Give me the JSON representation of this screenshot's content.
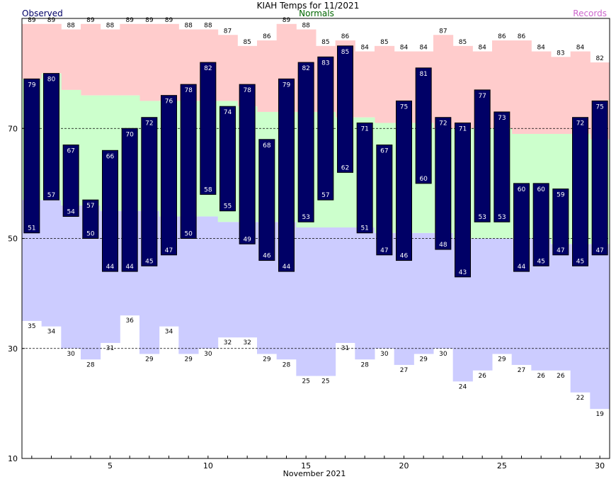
{
  "chart_data": {
    "type": "bar",
    "title": "KIAH Temps for 11/2021",
    "xlabel": "November 2021",
    "ylabel": "",
    "legend": [
      "Observed",
      "Normals",
      "Records"
    ],
    "colors": {
      "observed": "#000066",
      "normals": "#ccffcc",
      "records_high": "#ffcccc",
      "records_low": "#ccccff",
      "observed_label": "#000066",
      "normals_label": "#006600",
      "records_label": "#cc66cc",
      "value_text_inside": "#ffffff",
      "value_text_outside": "#000000"
    },
    "ylim": [
      10,
      90
    ],
    "yticks": [
      10,
      30,
      50,
      70
    ],
    "dashed_gridlines": [
      30,
      50,
      70
    ],
    "xlim": [
      0.5,
      30.5
    ],
    "xticks": [
      5,
      10,
      15,
      20,
      25,
      30
    ],
    "days": [
      1,
      2,
      3,
      4,
      5,
      6,
      7,
      8,
      9,
      10,
      11,
      12,
      13,
      14,
      15,
      16,
      17,
      18,
      19,
      20,
      21,
      22,
      23,
      24,
      25,
      26,
      27,
      28,
      29,
      30
    ],
    "observed_high": [
      79,
      80,
      67,
      57,
      66,
      70,
      72,
      76,
      78,
      82,
      74,
      78,
      68,
      79,
      82,
      83,
      85,
      71,
      67,
      75,
      81,
      72,
      71,
      77,
      73,
      60,
      60,
      59,
      72,
      75
    ],
    "observed_low": [
      51,
      57,
      54,
      50,
      44,
      44,
      45,
      47,
      50,
      58,
      55,
      49,
      46,
      44,
      53,
      57,
      62,
      51,
      47,
      46,
      60,
      48,
      43,
      53,
      53,
      44,
      45,
      47,
      45,
      47
    ],
    "normal_high": [
      79,
      80,
      77,
      76,
      76,
      76,
      75,
      75,
      75,
      75,
      75,
      74,
      73,
      73,
      73,
      73,
      72,
      72,
      71,
      71,
      71,
      70,
      70,
      70,
      70,
      69,
      69,
      69,
      69,
      68
    ],
    "normal_low": [
      57,
      57,
      56,
      56,
      55,
      55,
      55,
      54,
      54,
      54,
      53,
      53,
      53,
      53,
      52,
      52,
      52,
      52,
      51,
      51,
      51,
      51,
      50,
      50,
      50,
      50,
      50,
      49,
      49,
      49
    ],
    "record_high": [
      89,
      89,
      88,
      89,
      88,
      89,
      89,
      89,
      88,
      88,
      87,
      85,
      86,
      89,
      88,
      85,
      86,
      84,
      85,
      84,
      84,
      87,
      85,
      84,
      86,
      86,
      84,
      83,
      84,
      82
    ],
    "record_low": [
      35,
      34,
      30,
      28,
      31,
      36,
      29,
      34,
      29,
      30,
      32,
      32,
      29,
      28,
      25,
      25,
      31,
      28,
      30,
      27,
      29,
      30,
      24,
      26,
      29,
      27,
      26,
      26,
      22,
      19
    ]
  }
}
